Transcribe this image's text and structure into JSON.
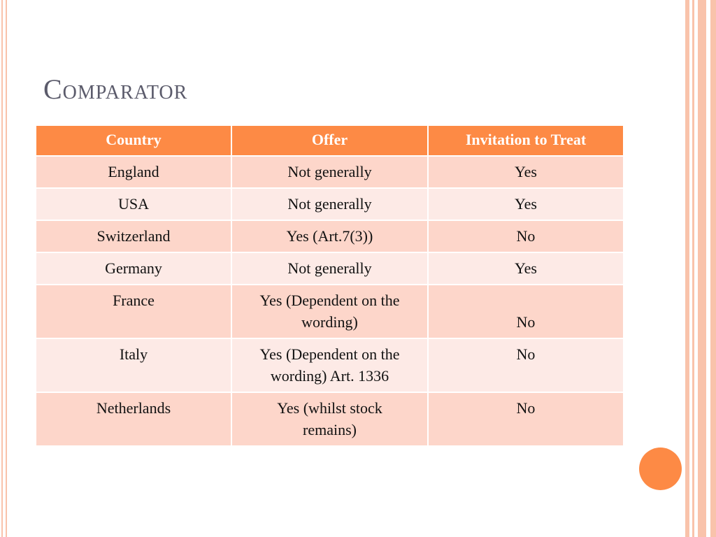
{
  "title": "Comparator",
  "table": {
    "header": [
      "Country",
      "Offer",
      "Invitation to Treat"
    ],
    "rows": [
      [
        "England",
        "Not generally",
        "Yes"
      ],
      [
        "USA",
        "Not generally",
        "Yes"
      ],
      [
        "Switzerland",
        "Yes (Art.7(3))",
        "No"
      ],
      [
        "Germany",
        "Not generally",
        "Yes"
      ],
      [
        "France",
        "Yes (Dependent on the wording)",
        "No"
      ],
      [
        "Italy",
        "Yes (Dependent on the wording) Art. 1336",
        "No"
      ],
      [
        "Netherlands",
        "Yes (whilst stock remains)",
        "No"
      ]
    ]
  }
}
